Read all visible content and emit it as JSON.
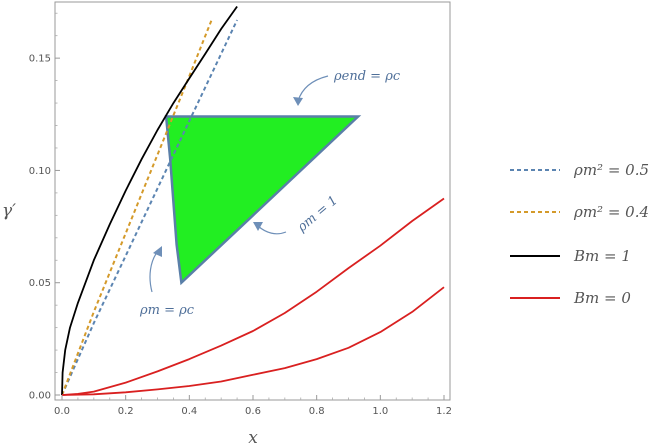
{
  "chart_data": {
    "type": "line",
    "xlabel": "x",
    "ylabel": "γ′",
    "xlim": [
      0,
      1.2
    ],
    "ylim": [
      -0.002,
      0.175
    ],
    "xticks": [
      0.0,
      0.2,
      0.4,
      0.6,
      0.8,
      1.0,
      1.2
    ],
    "xtick_labels": [
      "0.0",
      "0.2",
      "0.4",
      "0.6",
      "0.8",
      "1.0",
      "1.2"
    ],
    "yticks": [
      0.0,
      0.05,
      0.1,
      0.15
    ],
    "ytick_labels": [
      "0.00",
      "0.05",
      "0.10",
      "0.15"
    ],
    "legend_position": "right",
    "series": [
      {
        "name": "ρm² = 0.5",
        "color": "#5b84b1",
        "style": "dashed",
        "x": [
          0.0,
          0.1,
          0.2,
          0.3,
          0.4,
          0.5,
          0.55
        ],
        "y": [
          0.0,
          0.032,
          0.062,
          0.092,
          0.122,
          0.152,
          0.167
        ]
      },
      {
        "name": "ρm² = 0.4",
        "color": "#d49a2a",
        "style": "dashed",
        "x": [
          0.0,
          0.1,
          0.2,
          0.3,
          0.4,
          0.47
        ],
        "y": [
          0.0,
          0.037,
          0.072,
          0.107,
          0.142,
          0.167
        ]
      },
      {
        "name": "Bm = 1",
        "color": "#000000",
        "style": "solid",
        "x": [
          0.0,
          0.002,
          0.01,
          0.025,
          0.05,
          0.1,
          0.15,
          0.2,
          0.25,
          0.3,
          0.35,
          0.4,
          0.45,
          0.5,
          0.55
        ],
        "y": [
          0.0,
          0.01,
          0.02,
          0.03,
          0.041,
          0.06,
          0.076,
          0.091,
          0.105,
          0.118,
          0.13,
          0.141,
          0.152,
          0.163,
          0.173
        ]
      },
      {
        "name": "Bm = 0",
        "color": "#d92020",
        "style": "solid",
        "x": [
          0.0,
          0.05,
          0.1,
          0.2,
          0.3,
          0.4,
          0.5,
          0.6,
          0.7,
          0.8,
          0.9,
          1.0,
          1.1,
          1.2
        ],
        "y": [
          0.0,
          0.0005,
          0.0015,
          0.0055,
          0.0105,
          0.016,
          0.022,
          0.0285,
          0.0365,
          0.046,
          0.0565,
          0.0665,
          0.0775,
          0.0875
        ]
      },
      {
        "name": "",
        "color": "#d92020",
        "style": "solid",
        "x": [
          0.0,
          0.1,
          0.2,
          0.3,
          0.4,
          0.5,
          0.6,
          0.7,
          0.8,
          0.9,
          1.0,
          1.1,
          1.2
        ],
        "y": [
          0.0,
          0.0003,
          0.0012,
          0.0025,
          0.004,
          0.006,
          0.009,
          0.012,
          0.016,
          0.021,
          0.028,
          0.037,
          0.048
        ]
      }
    ],
    "region": {
      "color": "#22ee22",
      "edge_color": "#5a7fa8",
      "x": [
        0.327,
        0.93,
        0.375,
        0.36,
        0.35,
        0.34,
        0.327
      ],
      "y": [
        0.124,
        0.124,
        0.05,
        0.067,
        0.086,
        0.105,
        0.124
      ]
    },
    "annotations": [
      {
        "text": "ρend = ρc"
      },
      {
        "text": "ρm = 1"
      },
      {
        "text": "ρm = ρc"
      }
    ]
  }
}
